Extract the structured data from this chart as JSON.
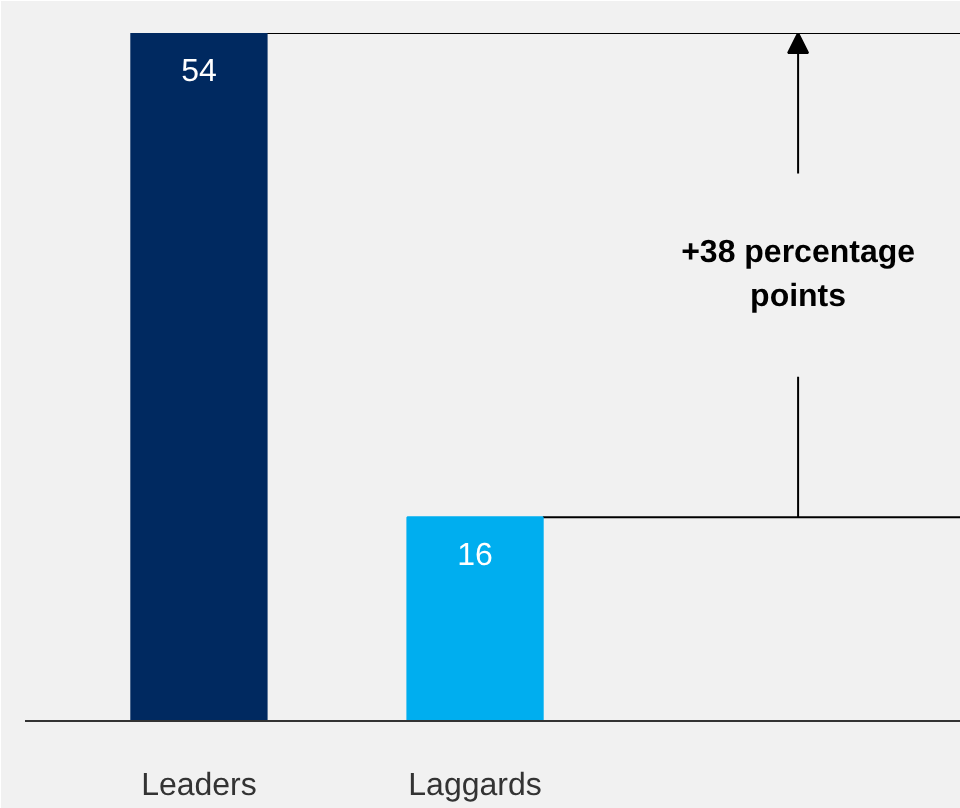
{
  "chart_data": {
    "type": "bar",
    "categories": [
      "Leaders",
      "Laggards"
    ],
    "values": [
      54,
      16
    ],
    "colors": [
      "#002960",
      "#00aeef"
    ],
    "ylim": [
      0,
      54
    ],
    "data_labels": true,
    "grid": false,
    "tick_labels": "x",
    "ref_lines": [
      {
        "axis": "y",
        "value": 54,
        "color": "#000000"
      },
      {
        "axis": "y",
        "value": 16,
        "color": "#000000"
      }
    ],
    "annotations": [
      "+38 percentage points"
    ]
  }
}
